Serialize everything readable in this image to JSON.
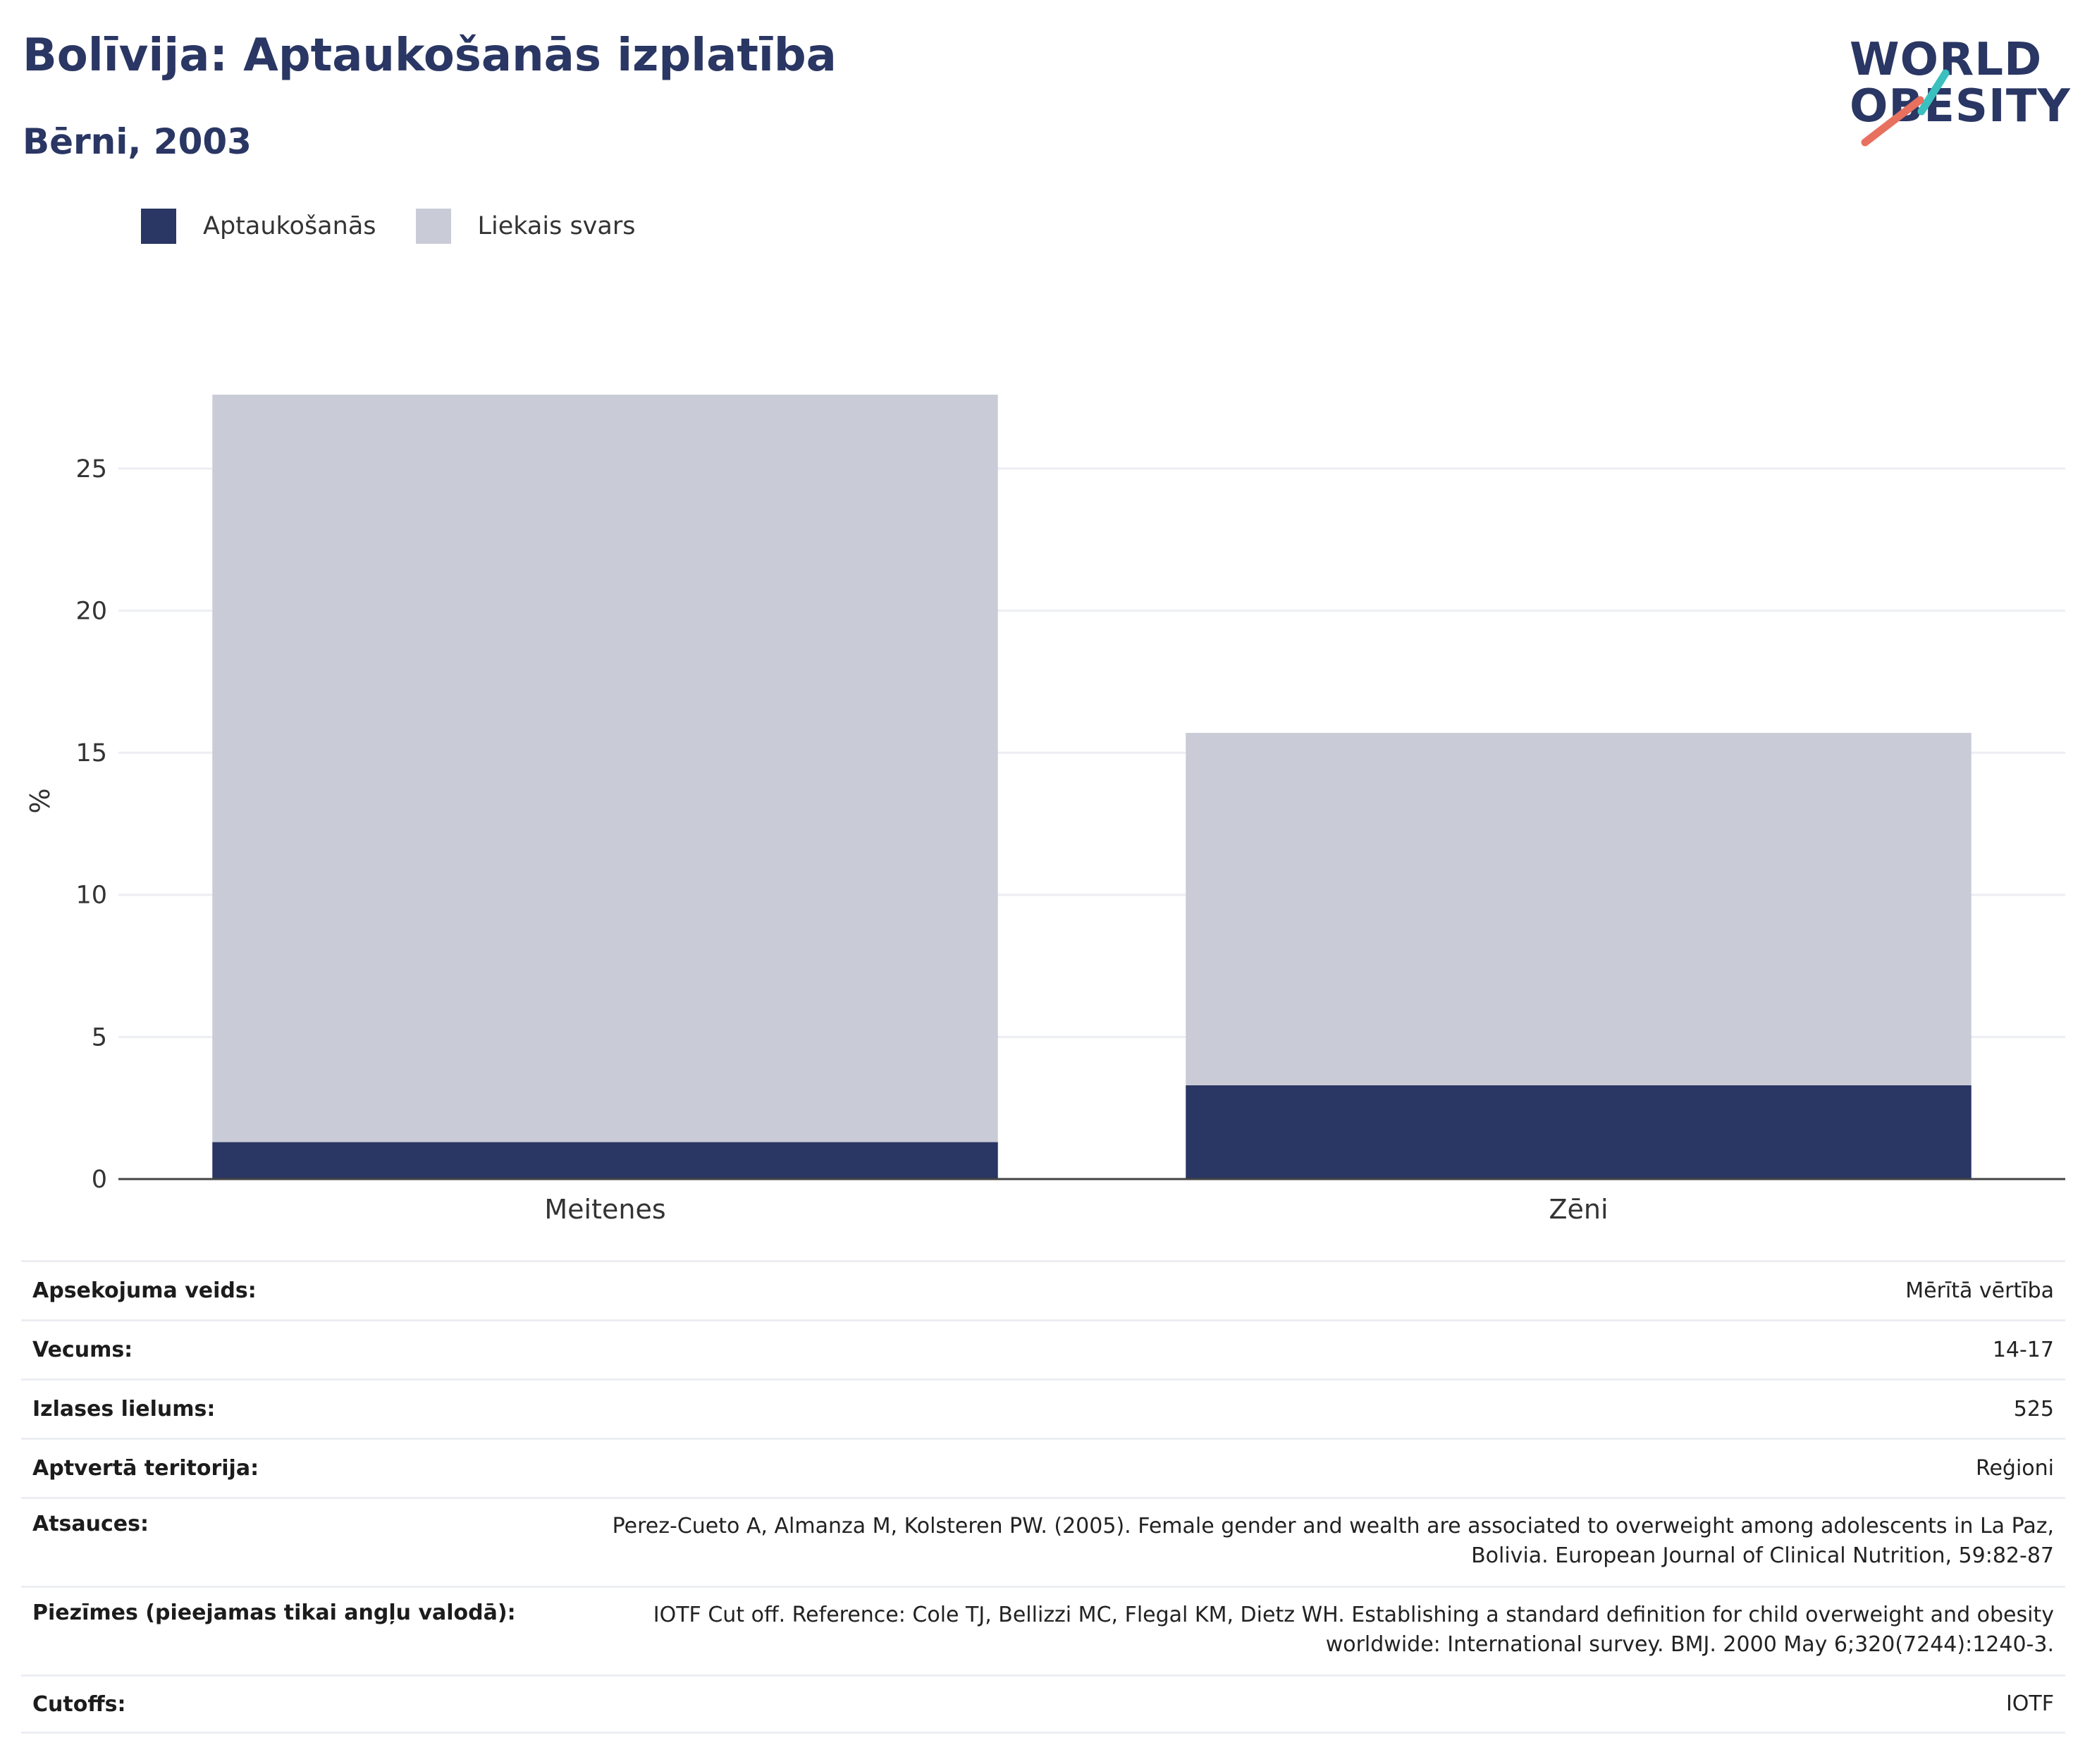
{
  "header": {
    "title": "Bolīvija: Aptaukošanās izplatība",
    "subtitle": "Bērni, 2003"
  },
  "logo": {
    "line1": "WORLD",
    "line2": "OBESITY",
    "accent_teal": "#3bbfbf",
    "accent_coral": "#e8705f"
  },
  "legend": [
    {
      "label": "Aptaukošanās",
      "color": "#2a3663"
    },
    {
      "label": "Liekais svars",
      "color": "#c9ccd7"
    }
  ],
  "chart_data": {
    "type": "bar",
    "stacked": true,
    "categories": [
      "Meitenes",
      "Zēni"
    ],
    "series": [
      {
        "name": "Aptaukošanās",
        "values": [
          1.3,
          3.3
        ],
        "color": "#2a3663"
      },
      {
        "name": "Liekais svars",
        "values": [
          26.3,
          12.4
        ],
        "color": "#c9ccd7"
      }
    ],
    "ylabel": "%",
    "ylim": [
      0,
      27.6
    ],
    "yticks": [
      0,
      5,
      10,
      15,
      20,
      25
    ],
    "grid": true
  },
  "details": [
    {
      "label": "Apsekojuma veids:",
      "value": "Mērītā vērtība"
    },
    {
      "label": "Vecums:",
      "value": "14-17"
    },
    {
      "label": "Izlases lielums:",
      "value": "525"
    },
    {
      "label": "Aptvertā teritorija:",
      "value": "Reģioni"
    },
    {
      "label": "Atsauces:",
      "value": "Perez-Cueto A, Almanza M, Kolsteren PW. (2005). Female gender and wealth are associated to overweight among adolescents in La Paz, Bolivia. European Journal of Clinical Nutrition, 59:82-87"
    },
    {
      "label": "Piezīmes (pieejamas tikai angļu valodā):",
      "value": "IOTF Cut off. Reference: Cole TJ, Bellizzi MC, Flegal KM, Dietz WH. Establishing a standard definition for child overweight and obesity worldwide: International survey. BMJ. 2000 May 6;320(7244):1240-3."
    },
    {
      "label": "Cutoffs:",
      "value": "IOTF"
    }
  ]
}
